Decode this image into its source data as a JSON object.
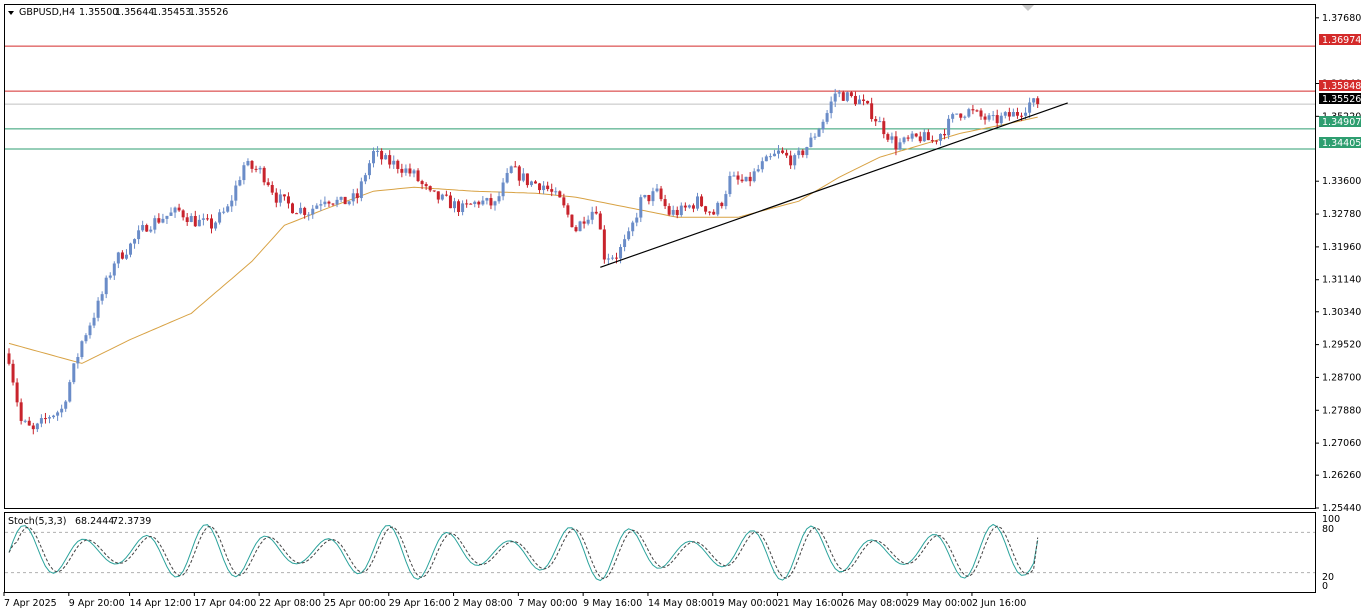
{
  "header": {
    "symbol": "GBPUSD,H4",
    "open": "1.35500",
    "high": "1.35644",
    "low": "1.35453",
    "close": "1.35526"
  },
  "indicator": {
    "label": "Stoch(5,3,3)",
    "main": "68.2444",
    "signal": "72.3739",
    "levels": [
      "100",
      "80",
      "20",
      "0"
    ]
  },
  "colors": {
    "bull": "#6a8cc8",
    "bear": "#c8232c",
    "resistance": "#d42a2a",
    "support": "#2e9e70",
    "ma": "#d8a244",
    "stoch_main": "#2ba39c",
    "stoch_signal": "#444444",
    "price_badge": "#000000"
  },
  "chart_data": {
    "type": "candlestick",
    "timeframe": "H4",
    "ylim": [
      1.2544,
      1.38
    ],
    "y_ticks": [
      "1.37680",
      "1.36040",
      "1.35220",
      "1.33600",
      "1.32780",
      "1.31960",
      "1.31140",
      "1.30340",
      "1.29520",
      "1.28700",
      "1.27880",
      "1.27060",
      "1.26260",
      "1.25440"
    ],
    "x_ticks": [
      "7 Apr 2025",
      "9 Apr 20:00",
      "14 Apr 12:00",
      "17 Apr 04:00",
      "22 Apr 08:00",
      "25 Apr 00:00",
      "29 Apr 16:00",
      "2 May 08:00",
      "7 May 00:00",
      "9 May 16:00",
      "14 May 08:00",
      "19 May 00:00",
      "21 May 16:00",
      "26 May 08:00",
      "29 May 00:00",
      "2 Jun 16:00"
    ],
    "horizontal_levels": [
      {
        "value": 1.36974,
        "label": "1.36974",
        "color": "resistance"
      },
      {
        "value": 1.35848,
        "label": "1.35848",
        "color": "resistance"
      },
      {
        "value": 1.35526,
        "label": "1.35526",
        "color": "price_badge"
      },
      {
        "value": 1.34907,
        "label": "1.34907",
        "color": "support"
      },
      {
        "value": 1.34405,
        "label": "1.34405",
        "color": "support"
      }
    ],
    "trendline": {
      "from": {
        "index": 146,
        "price": 1.3145
      },
      "to": {
        "index": 254,
        "price": 1.3548
      }
    },
    "candle_count": 255,
    "close_path": [
      [
        0,
        1.292
      ],
      [
        3,
        1.276
      ],
      [
        6,
        1.2735
      ],
      [
        10,
        1.2775
      ],
      [
        13,
        1.279
      ],
      [
        18,
        1.296
      ],
      [
        22,
        1.305
      ],
      [
        26,
        1.316
      ],
      [
        30,
        1.32
      ],
      [
        34,
        1.325
      ],
      [
        38,
        1.327
      ],
      [
        42,
        1.3285
      ],
      [
        46,
        1.326
      ],
      [
        50,
        1.325
      ],
      [
        54,
        1.329
      ],
      [
        58,
        1.34
      ],
      [
        62,
        1.3385
      ],
      [
        64,
        1.336
      ],
      [
        66,
        1.332
      ],
      [
        70,
        1.3295
      ],
      [
        74,
        1.3285
      ],
      [
        78,
        1.332
      ],
      [
        82,
        1.3305
      ],
      [
        86,
        1.332
      ],
      [
        88,
        1.338
      ],
      [
        90,
        1.343
      ],
      [
        93,
        1.341
      ],
      [
        96,
        1.34
      ],
      [
        100,
        1.3375
      ],
      [
        104,
        1.3325
      ],
      [
        108,
        1.331
      ],
      [
        112,
        1.329
      ],
      [
        116,
        1.331
      ],
      [
        120,
        1.33
      ],
      [
        124,
        1.339
      ],
      [
        128,
        1.336
      ],
      [
        132,
        1.335
      ],
      [
        136,
        1.331
      ],
      [
        140,
        1.324
      ],
      [
        142,
        1.327
      ],
      [
        145,
        1.3295
      ],
      [
        147,
        1.3175
      ],
      [
        150,
        1.3175
      ],
      [
        153,
        1.322
      ],
      [
        156,
        1.331
      ],
      [
        160,
        1.333
      ],
      [
        163,
        1.328
      ],
      [
        166,
        1.3285
      ],
      [
        170,
        1.331
      ],
      [
        174,
        1.328
      ],
      [
        176,
        1.331
      ],
      [
        178,
        1.3365
      ],
      [
        182,
        1.3355
      ],
      [
        186,
        1.34
      ],
      [
        190,
        1.343
      ],
      [
        194,
        1.341
      ],
      [
        198,
        1.346
      ],
      [
        202,
        1.353
      ],
      [
        204,
        1.358
      ],
      [
        206,
        1.3575
      ],
      [
        210,
        1.356
      ],
      [
        213,
        1.353
      ],
      [
        216,
        1.349
      ],
      [
        219,
        1.345
      ],
      [
        222,
        1.346
      ],
      [
        225,
        1.347
      ],
      [
        228,
        1.346
      ],
      [
        231,
        1.349
      ],
      [
        234,
        1.353
      ],
      [
        237,
        1.3535
      ],
      [
        240,
        1.352
      ],
      [
        243,
        1.351
      ],
      [
        246,
        1.352
      ],
      [
        249,
        1.353
      ],
      [
        252,
        1.3555
      ],
      [
        254,
        1.35526
      ]
    ],
    "moving_average": [
      [
        0,
        1.2955
      ],
      [
        18,
        1.2905
      ],
      [
        30,
        1.2965
      ],
      [
        45,
        1.303
      ],
      [
        60,
        1.316
      ],
      [
        68,
        1.325
      ],
      [
        78,
        1.329
      ],
      [
        90,
        1.3335
      ],
      [
        100,
        1.3345
      ],
      [
        115,
        1.3335
      ],
      [
        130,
        1.333
      ],
      [
        140,
        1.332
      ],
      [
        150,
        1.33
      ],
      [
        165,
        1.327
      ],
      [
        180,
        1.327
      ],
      [
        195,
        1.331
      ],
      [
        205,
        1.337
      ],
      [
        215,
        1.342
      ],
      [
        225,
        1.345
      ],
      [
        235,
        1.348
      ],
      [
        245,
        1.35
      ],
      [
        254,
        1.352
      ]
    ],
    "stochastic": {
      "main_last": 68.2444,
      "signal_last": 72.3739,
      "levels": [
        20,
        80
      ]
    }
  }
}
